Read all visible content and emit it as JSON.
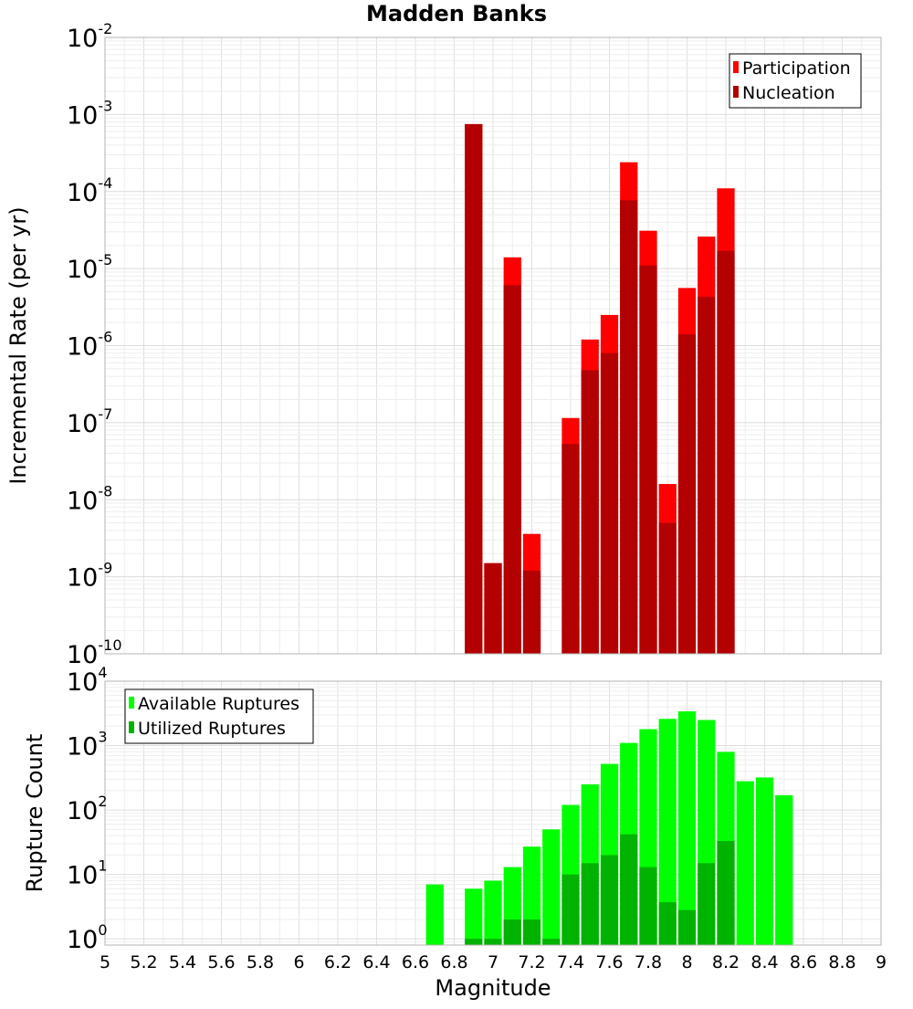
{
  "title": "Madden Banks",
  "colors": {
    "participation": "#ff0000",
    "nucleation": "#b30000",
    "available": "#00ff00",
    "utilized": "#00b300",
    "grid": "#e6e6e6",
    "frame": "#b3b3b3"
  },
  "chart_data": [
    {
      "type": "bar",
      "title": "Madden Banks",
      "xlabel": "Magnitude",
      "ylabel": "Incremental Rate (per yr)",
      "yscale": "log",
      "xlim": [
        5,
        9
      ],
      "ylim": [
        1e-10,
        0.01
      ],
      "grid": true,
      "legend_position": "top-right",
      "bar_width": 0.1,
      "x": [
        6.9,
        7.0,
        7.1,
        7.2,
        7.4,
        7.5,
        7.6,
        7.7,
        7.8,
        7.9,
        8.0,
        8.1,
        8.2
      ],
      "series": [
        {
          "name": "Participation",
          "values": [
            0.00075,
            1.5e-09,
            1.4e-05,
            3.6e-09,
            1.15e-07,
            1.2e-06,
            2.5e-06,
            0.00024,
            3.1e-05,
            1.6e-08,
            5.6e-06,
            2.6e-05,
            0.00011
          ]
        },
        {
          "name": "Nucleation",
          "values": [
            0.00075,
            1.5e-09,
            6.1e-06,
            1.2e-09,
            5.3e-08,
            4.8e-07,
            8e-07,
            7.7e-05,
            1.1e-05,
            5e-09,
            1.4e-06,
            4.3e-06,
            1.7e-05
          ]
        }
      ],
      "x_ticks": [
        "5",
        "5.2",
        "5.4",
        "5.6",
        "5.8",
        "6",
        "6.2",
        "6.4",
        "6.6",
        "6.8",
        "7",
        "7.2",
        "7.4",
        "7.6",
        "7.8",
        "8",
        "8.2",
        "8.4",
        "8.6",
        "8.8",
        "9"
      ],
      "y_tick_exponents": [
        "-10",
        "-9",
        "-8",
        "-7",
        "-6",
        "-5",
        "-4",
        "-3",
        "-2"
      ]
    },
    {
      "type": "bar",
      "xlabel": "Magnitude",
      "ylabel": "Rupture Count",
      "yscale": "log",
      "xlim": [
        5,
        9
      ],
      "ylim": [
        0.8,
        10000.0
      ],
      "grid": true,
      "legend_position": "top-left",
      "bar_width": 0.1,
      "x": [
        6.7,
        6.9,
        7.0,
        7.1,
        7.2,
        7.3,
        7.4,
        7.5,
        7.6,
        7.7,
        7.8,
        7.9,
        8.0,
        8.1,
        8.2,
        8.3,
        8.4,
        8.5
      ],
      "series": [
        {
          "name": "Available Ruptures",
          "values": [
            7,
            6,
            8,
            13,
            27,
            50,
            120,
            250,
            520,
            1100,
            1800,
            2600,
            3400,
            2500,
            800,
            280,
            320,
            170
          ]
        },
        {
          "name": "Utilized Ruptures",
          "values": [
            0,
            1,
            1,
            2,
            2,
            1,
            10,
            15,
            20,
            42,
            13,
            3.7,
            2.8,
            15,
            33,
            0,
            0,
            0
          ]
        }
      ],
      "x_ticks": [
        "5",
        "5.2",
        "5.4",
        "5.6",
        "5.8",
        "6",
        "6.2",
        "6.4",
        "6.6",
        "6.8",
        "7",
        "7.2",
        "7.4",
        "7.6",
        "7.8",
        "8",
        "8.2",
        "8.4",
        "8.6",
        "8.8",
        "9"
      ],
      "y_tick_exponents": [
        "0",
        "1",
        "2",
        "3",
        "4"
      ]
    }
  ]
}
